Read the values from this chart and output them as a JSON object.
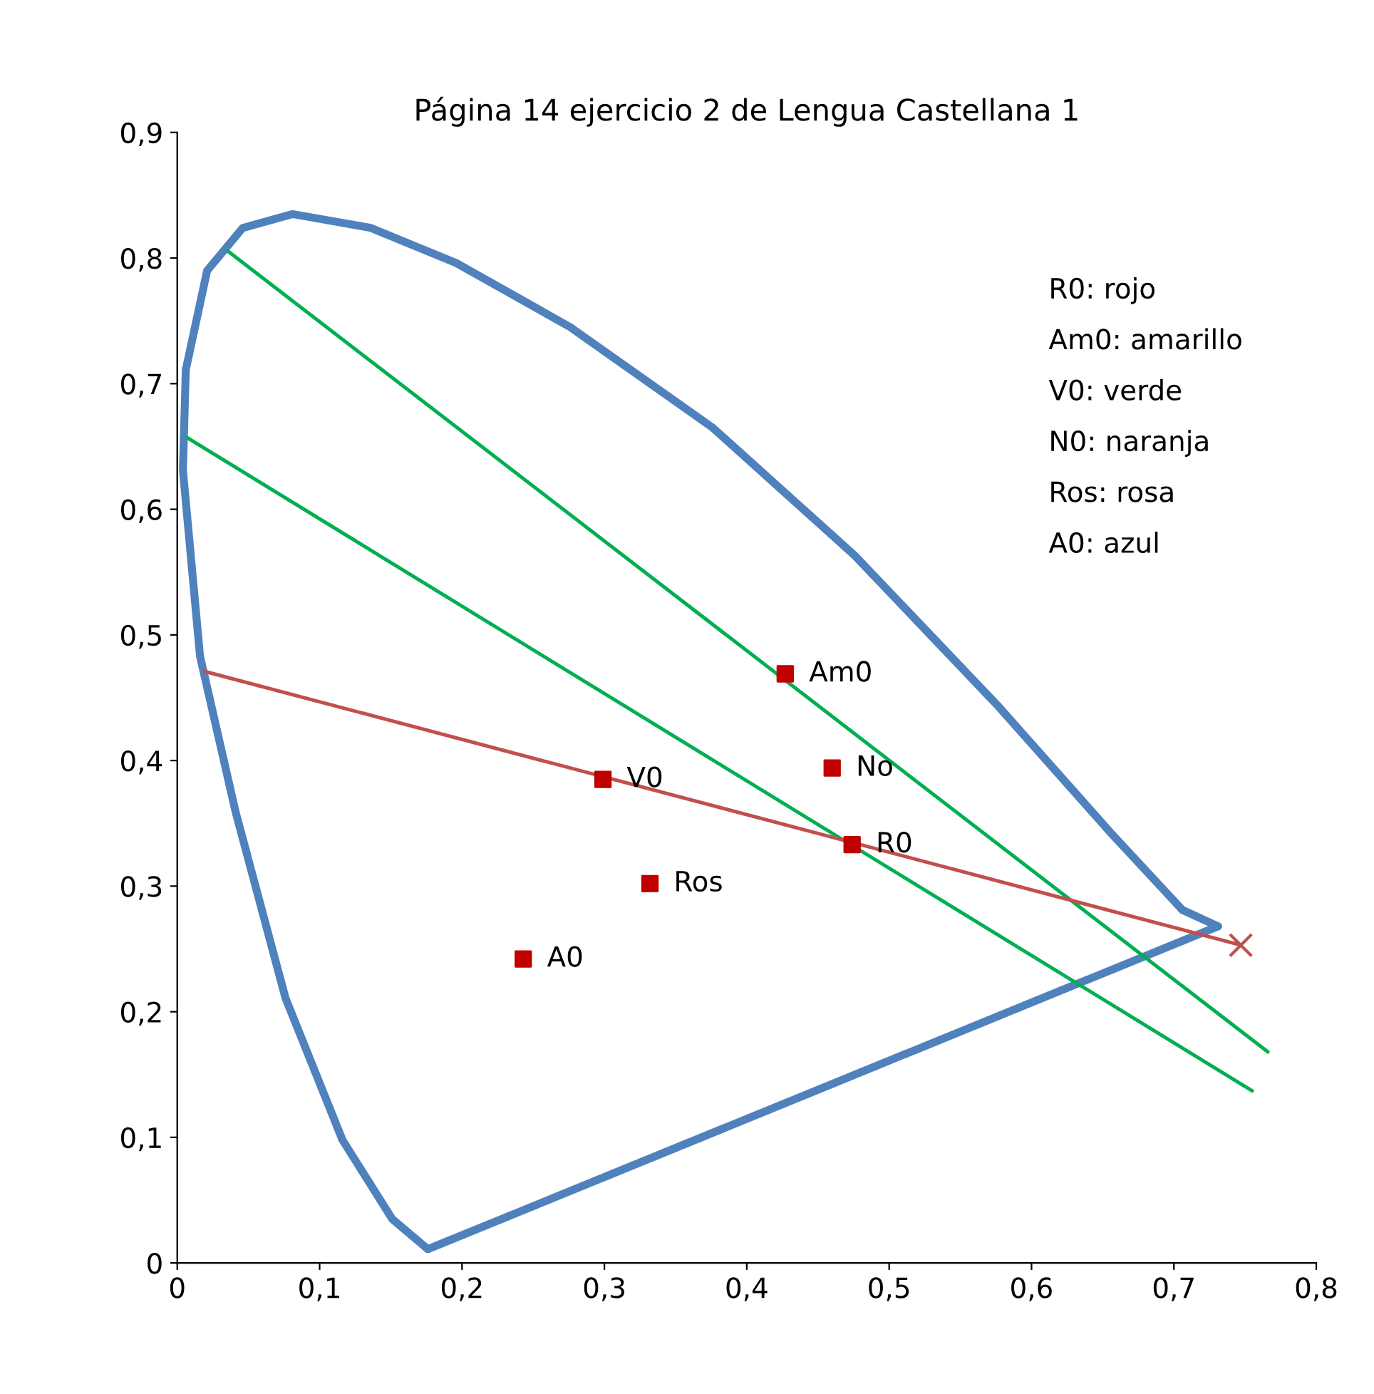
{
  "chart_data": {
    "type": "line",
    "title": "Página 14 ejercicio 2 de Lengua Castellana 1",
    "xlim": [
      0,
      0.8
    ],
    "ylim": [
      0,
      0.9
    ],
    "xticks": [
      0,
      {
        "value": 0.1,
        "label": "0,1"
      },
      {
        "value": 0.2,
        "label": "0,2"
      },
      {
        "value": 0.3,
        "label": "0,3"
      },
      {
        "value": 0.4,
        "label": "0,4"
      },
      {
        "value": 0.5,
        "label": "0,5"
      },
      {
        "value": 0.6,
        "label": "0,6"
      },
      {
        "value": 0.7,
        "label": "0,7"
      },
      {
        "value": 0.8,
        "label": "0,8"
      }
    ],
    "yticks": [
      0,
      {
        "value": 0.1,
        "label": "0,1"
      },
      {
        "value": 0.2,
        "label": "0,2"
      },
      {
        "value": 0.3,
        "label": "0,3"
      },
      {
        "value": 0.4,
        "label": "0,4"
      },
      {
        "value": 0.5,
        "label": "0,5"
      },
      {
        "value": 0.6,
        "label": "0,6"
      },
      {
        "value": 0.7,
        "label": "0,7"
      },
      {
        "value": 0.8,
        "label": "0,8"
      },
      {
        "value": 0.9,
        "label": "0,9"
      }
    ],
    "grid": false,
    "legend": false,
    "series": [
      {
        "color": "#4f81bd",
        "marker": "none",
        "line_style": "solid",
        "x": [
          0.176,
          0.151,
          0.116,
          0.076,
          0.041,
          0.016,
          0.004,
          0.006,
          0.021,
          0.046,
          0.081,
          0.136,
          0.196,
          0.276,
          0.376,
          0.476,
          0.576,
          0.656,
          0.706,
          0.731
        ],
        "values": [
          0.011,
          0.035,
          0.098,
          0.211,
          0.359,
          0.483,
          0.631,
          0.711,
          0.79,
          0.824,
          0.835,
          0.824,
          0.796,
          0.745,
          0.665,
          0.563,
          0.444,
          0.342,
          0.281,
          0.268
        ]
      },
      {
        "color": "#4f81bd",
        "marker": "none",
        "line_style": "solid",
        "x": [
          0.176,
          0.731
        ],
        "values": [
          0.011,
          0.268
        ]
      },
      {
        "color": "#00b050",
        "marker": "none",
        "line_style": "solid",
        "x": [
          0.035,
          0.766
        ],
        "values": [
          0.806,
          0.168
        ]
      },
      {
        "color": "#00b050",
        "marker": "none",
        "line_style": "solid",
        "x": [
          0.007,
          0.755
        ],
        "values": [
          0.657,
          0.137
        ]
      },
      {
        "color": "#c0504d",
        "marker": "none",
        "line_style": "solid",
        "x": [
          0.019,
          0.747
        ],
        "values": [
          0.471,
          0.253
        ]
      },
      {
        "type": "scatter",
        "color": "#c00000",
        "marker": "square",
        "x": [
          0.427,
          0.46,
          0.474,
          0.299,
          0.332,
          0.243
        ],
        "values": [
          0.469,
          0.394,
          0.333,
          0.385,
          0.302,
          0.242
        ]
      },
      {
        "type": "scatter",
        "color": "#c0504d",
        "marker": "cross",
        "x": [
          0.747
        ],
        "values": [
          0.253
        ]
      }
    ],
    "annotations": [
      {
        "text": "Am0",
        "x": 0.427,
        "y": 0.469
      },
      {
        "text": "No",
        "x": 0.46,
        "y": 0.394
      },
      {
        "text": "R0",
        "x": 0.474,
        "y": 0.333
      },
      {
        "text": "V0",
        "x": 0.299,
        "y": 0.385
      },
      {
        "text": "Ros",
        "x": 0.332,
        "y": 0.302
      },
      {
        "text": "A0",
        "x": 0.243,
        "y": 0.242
      },
      "R0: rojo",
      "Am0: amarillo",
      "V0: verde",
      "N0: naranja",
      "Ros: rosa",
      "A0: azul"
    ]
  }
}
